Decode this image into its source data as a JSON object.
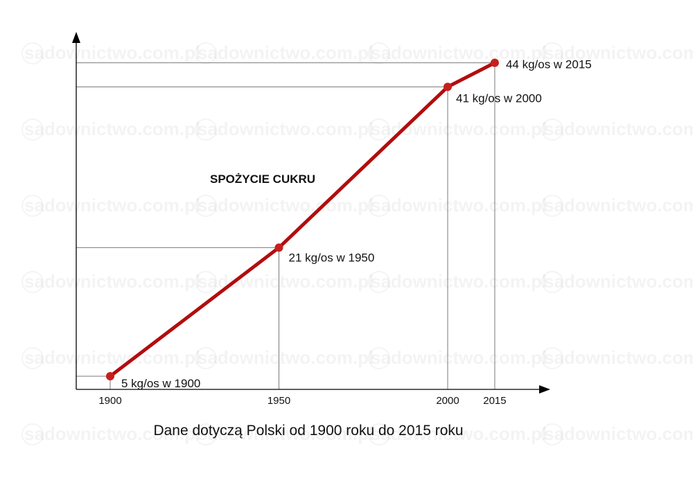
{
  "watermark": "sadownictwo.com.pl",
  "chart_data": {
    "type": "line",
    "title": "SPOŻYCIE CUKRU",
    "caption": "Dane dotyczą Polski od 1900 roku do 2015 roku",
    "xlabel": "",
    "ylabel": "",
    "x_ticks": [
      1900,
      1950,
      2000,
      2015
    ],
    "x": [
      1900,
      1950,
      2000,
      2015
    ],
    "values": [
      5,
      21,
      41,
      44
    ],
    "data_labels": [
      "5 kg/os w  1900",
      "21 kg/os w 1950",
      "41 kg/os w 2000",
      "44 kg/os w 2015"
    ],
    "colors": {
      "line": "#b20d0d",
      "point": "#c81e1e"
    },
    "grid": false
  }
}
